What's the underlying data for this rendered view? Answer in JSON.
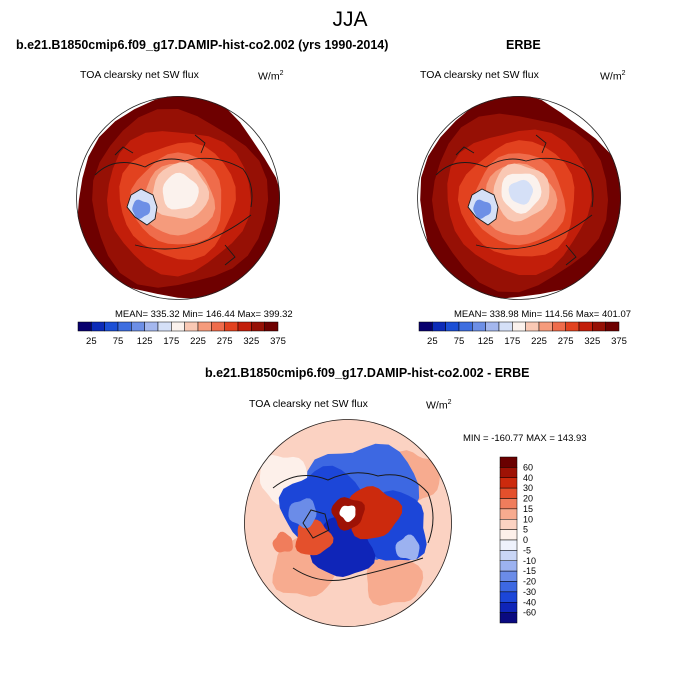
{
  "season": "JJA",
  "model_title": "b.e21.B1850cmip6.f09_g17.DAMIP-hist-co2.002 (yrs 1990-2014)",
  "obs_title": "ERBE",
  "diff_title": "b.e21.B1850cmip6.f09_g17.DAMIP-hist-co2.002 - ERBE",
  "variable": "TOA clearsky net SW flux",
  "units_main": "W/m",
  "units_exp": "2",
  "model_stats": "MEAN= 335.32  Min= 146.44  Max= 399.32",
  "obs_stats": "MEAN= 338.98  Min= 114.56  Max= 401.07",
  "diff_stats": "MIN = -160.77 MAX = 143.93",
  "colors": {
    "abs_scale": [
      "#08006e",
      "#0c2bb8",
      "#1b4fd6",
      "#3e6ee0",
      "#6d8fe6",
      "#a4b7ee",
      "#d5e0f7",
      "#fbf2ed",
      "#f9c8b4",
      "#f59b7c",
      "#ef6c4b",
      "#e2421f",
      "#c21e0a",
      "#961005",
      "#6e0000"
    ],
    "diff_scale": [
      "#0a0a80",
      "#0f25b8",
      "#1c46d8",
      "#3d68e2",
      "#6b8ce8",
      "#9cb2f0",
      "#c9d6f6",
      "#eef2fc",
      "#fdf0ea",
      "#fbd2c2",
      "#f7ab8f",
      "#f07d5c",
      "#e4502c",
      "#cc2a0d",
      "#9e1205",
      "#6a0000"
    ],
    "ocean": "#8f1a09",
    "coast": "#1a1a1a"
  },
  "abs_labels": [
    "25",
    "75",
    "125",
    "175",
    "225",
    "275",
    "325",
    "375"
  ],
  "diff_labels": [
    "60",
    "40",
    "30",
    "20",
    "15",
    "10",
    "5",
    "0",
    "-5",
    "-10",
    "-15",
    "-20",
    "-30",
    "-40",
    "-60"
  ]
}
